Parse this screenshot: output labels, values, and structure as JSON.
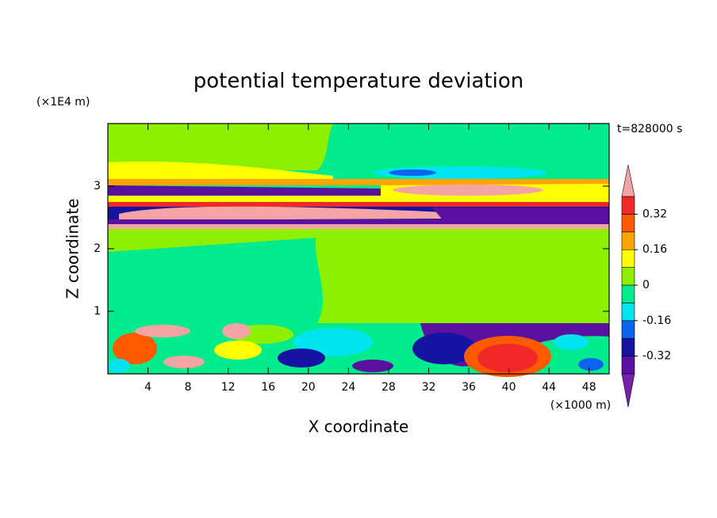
{
  "chart_data": {
    "type": "contourf",
    "title": "potential temperature deviation",
    "x_label": "X coordinate",
    "y_label": "Z coordinate",
    "x_unit": "(×1000 m)",
    "y_unit": "(×1E4 m)",
    "annotation": "t=828000 s",
    "xlim": [
      0,
      50
    ],
    "xticks": [
      4,
      8,
      12,
      16,
      20,
      24,
      28,
      32,
      36,
      40,
      44,
      48
    ],
    "ylim": [
      0,
      4
    ],
    "yticks": [
      1,
      2,
      3
    ],
    "colorbar": {
      "levels": [
        -0.4,
        -0.32,
        -0.24,
        -0.16,
        -0.08,
        0,
        0.08,
        0.16,
        0.24,
        0.32,
        0.4
      ],
      "colors": [
        "#5a10a0",
        "#1414a0",
        "#0a64f0",
        "#00e4f0",
        "#00ec8c",
        "#8cf000",
        "#ffff00",
        "#ffa400",
        "#ff5a00",
        "#f02828"
      ],
      "under_color": "#7820a8",
      "over_color": "#f4a4a4",
      "ticks": [
        -0.32,
        -0.16,
        0,
        0.16,
        0.32
      ]
    }
  }
}
